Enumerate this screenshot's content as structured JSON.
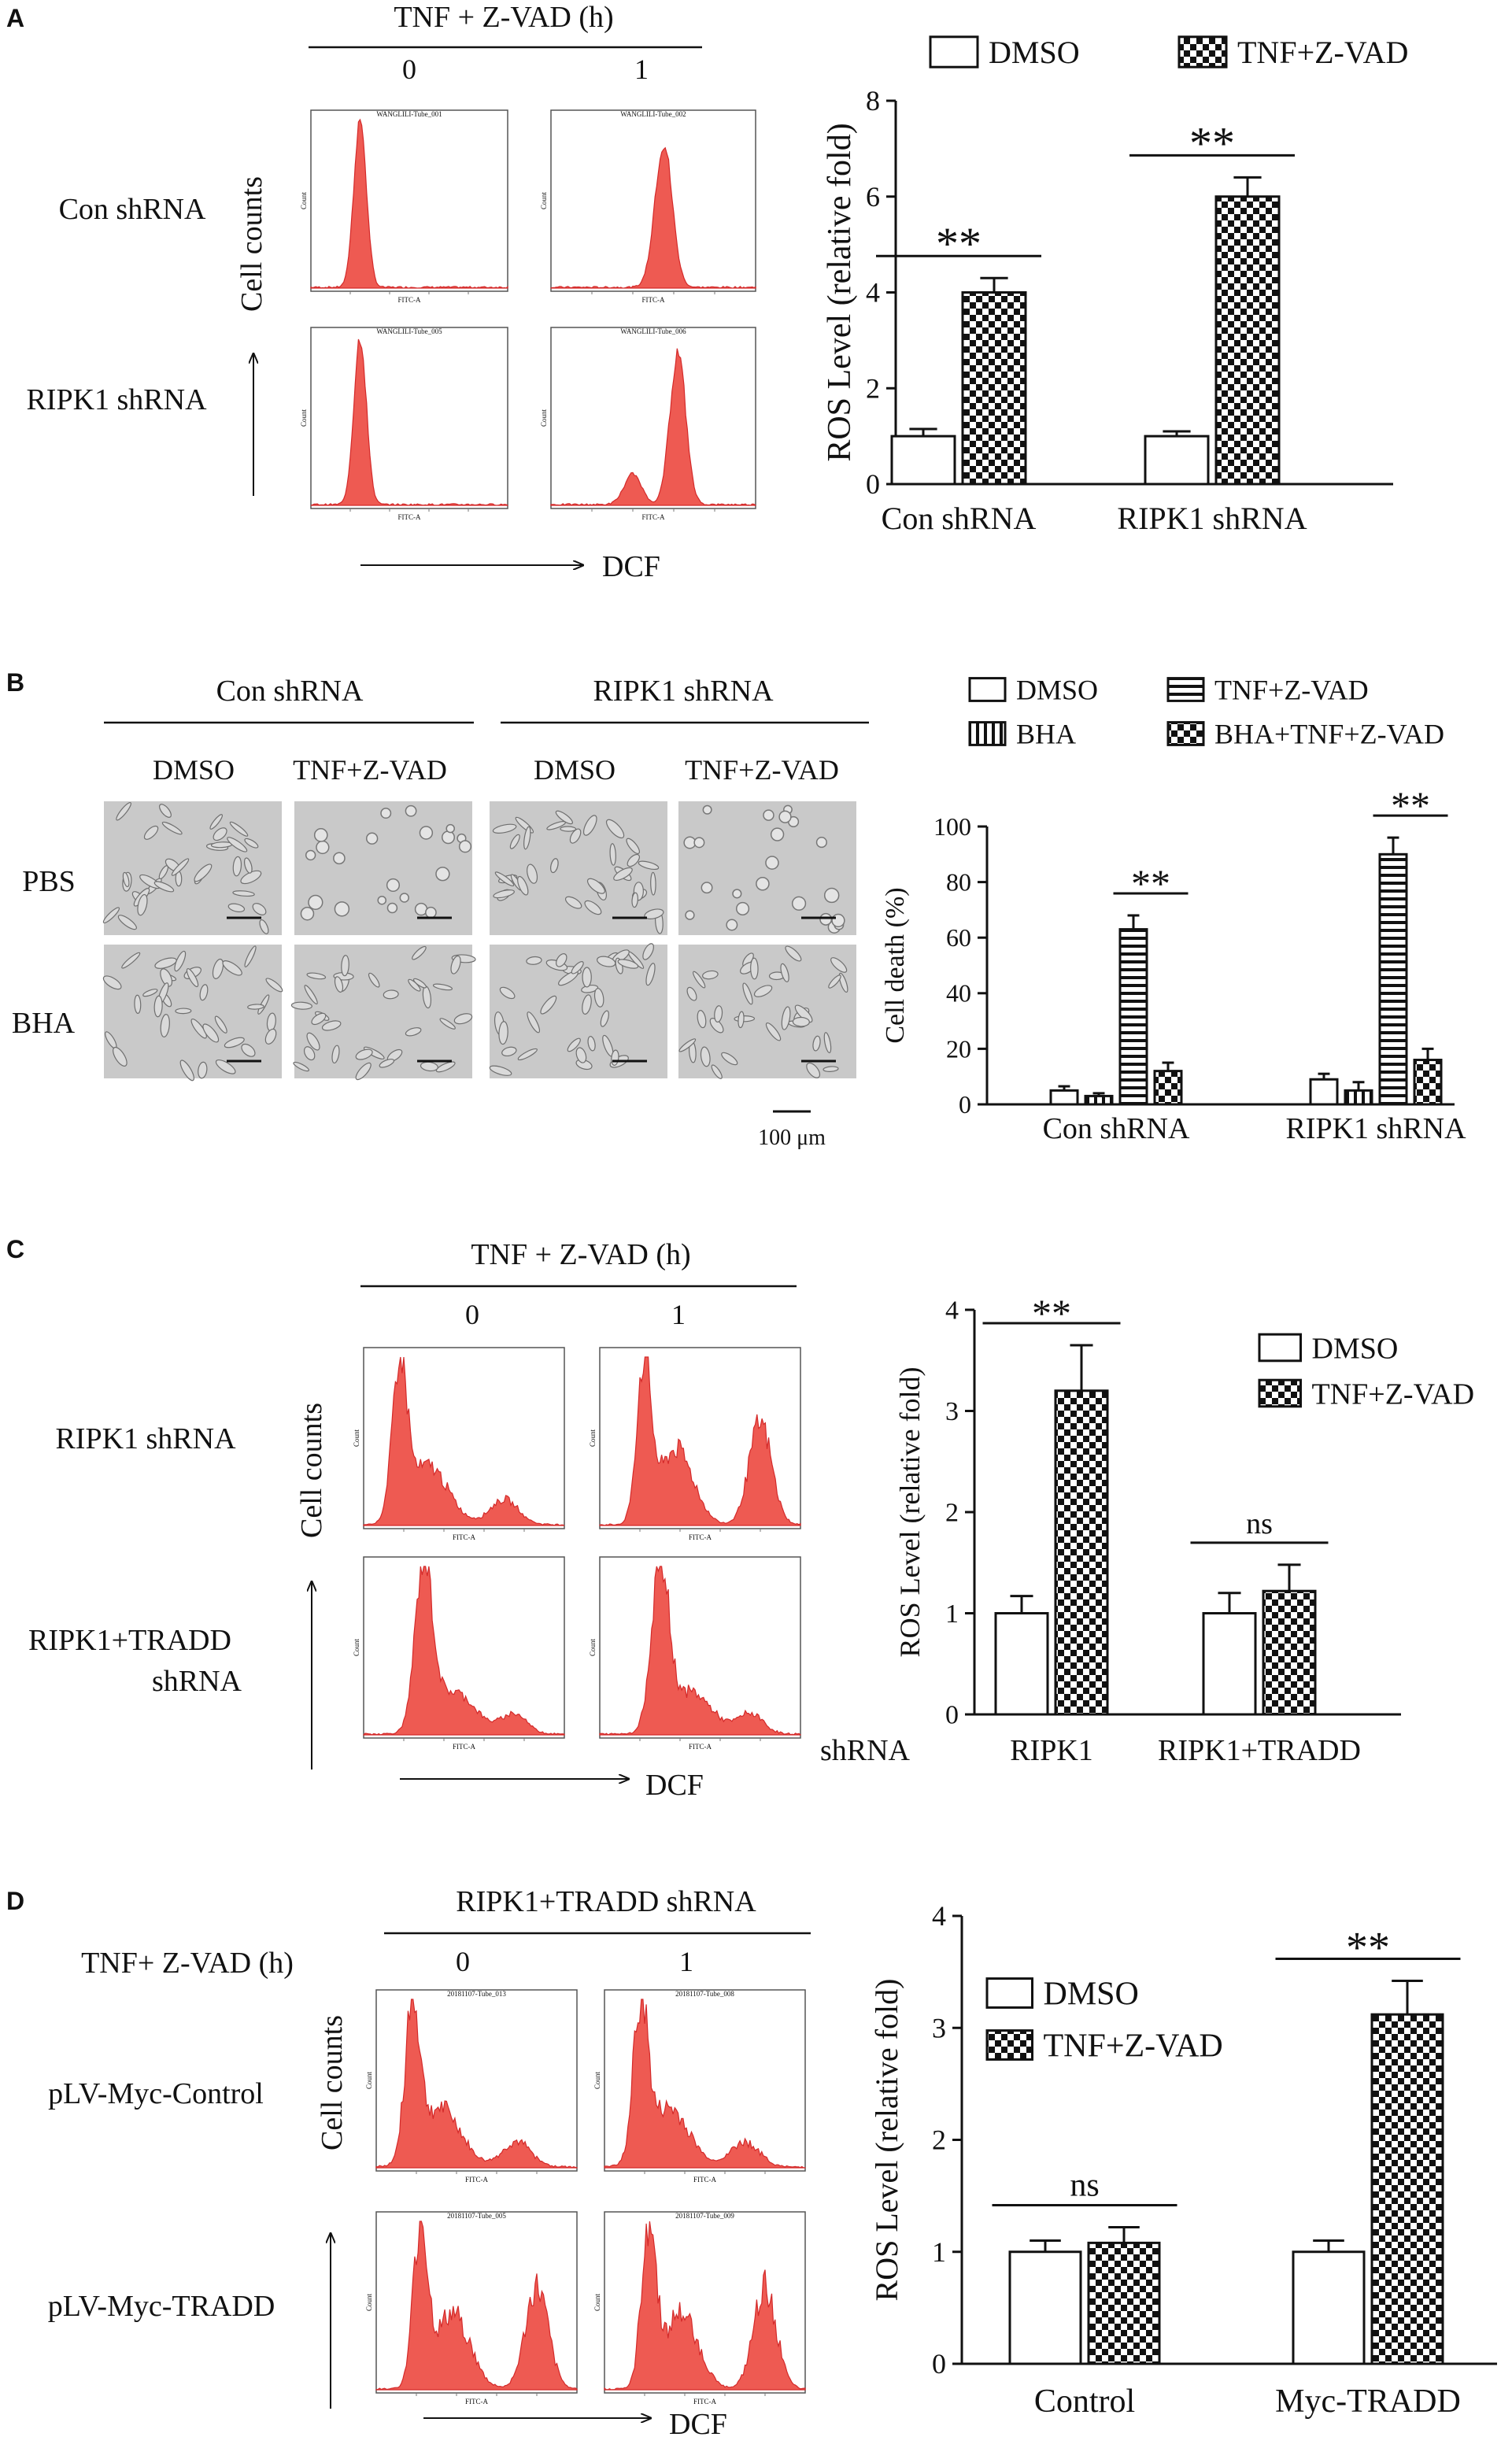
{
  "panels": {
    "A": {
      "label": "A",
      "time_header": "TNF + Z-VAD (h)",
      "times": [
        "0",
        "1"
      ],
      "rows": [
        "Con shRNA",
        "RIPK1 shRNA"
      ],
      "y_axis": "Cell counts",
      "x_axis": "DCF",
      "tube_names": [
        "WANGLILI-Tube_001",
        "WANGLILI-Tube_002",
        "WANGLILI-Tube_005",
        "WANGLILI-Tube_006"
      ],
      "hist_xlabel": "FITC-A",
      "hist_ylabel": "Count"
    },
    "B": {
      "label": "B",
      "groups": [
        "Con shRNA",
        "RIPK1 shRNA"
      ],
      "cols": [
        "DMSO",
        "TNF+Z-VAD",
        "DMSO",
        "TNF+Z-VAD"
      ],
      "rows": [
        "PBS",
        "BHA"
      ],
      "scale_label": "100 μm"
    },
    "C": {
      "label": "C",
      "time_header": "TNF + Z-VAD (h)",
      "times": [
        "0",
        "1"
      ],
      "rows": [
        "RIPK1 shRNA",
        "RIPK1+TRADD",
        "shRNA"
      ],
      "y_axis": "Cell counts",
      "x_axis": "DCF",
      "hist_xlabel": "FITC-A",
      "hist_ylabel": "Count"
    },
    "D": {
      "label": "D",
      "header": "RIPK1+TRADD shRNA",
      "time_label": "TNF+ Z-VAD (h)",
      "times": [
        "0",
        "1"
      ],
      "rows": [
        "pLV-Myc-Control",
        "pLV-Myc-TRADD"
      ],
      "y_axis": "Cell counts",
      "x_axis": "DCF",
      "tube_names": [
        "20181107-Tube_013",
        "20181107-Tube_008",
        "20181107-Tube_005",
        "20181107-Tube_009"
      ],
      "hist_xlabel": "FITC-A",
      "hist_ylabel": "Count"
    }
  },
  "colors": {
    "histogram_fill": "#ee5a52",
    "histogram_edge": "#d42a2a",
    "ink": "#111111",
    "micrograph_bg": "#c9c9c9"
  },
  "chart_data": [
    {
      "id": "A",
      "type": "bar",
      "pattern_series": [
        "open",
        "checker"
      ],
      "categories": [
        "Con shRNA",
        "RIPK1 shRNA"
      ],
      "series": [
        {
          "name": "DMSO",
          "values": [
            1.0,
            1.0
          ],
          "errors": [
            0.15,
            0.1
          ]
        },
        {
          "name": "TNF+Z-VAD",
          "values": [
            4.0,
            6.0
          ],
          "errors": [
            0.3,
            0.4
          ]
        }
      ],
      "ylabel": "ROS Level (relative fold)",
      "ylim": [
        0,
        8
      ],
      "yticks": [
        0,
        2,
        4,
        6,
        8
      ],
      "legend": "top",
      "significance": [
        "**",
        "**"
      ],
      "grid": false
    },
    {
      "id": "B",
      "type": "bar",
      "pattern_series": [
        "open",
        "vstripe",
        "hstripe",
        "checker"
      ],
      "categories": [
        "Con shRNA",
        "RIPK1 shRNA"
      ],
      "series": [
        {
          "name": "DMSO",
          "values": [
            5,
            9
          ],
          "errors": [
            1.5,
            2
          ]
        },
        {
          "name": "BHA",
          "values": [
            3,
            5
          ],
          "errors": [
            1,
            3
          ]
        },
        {
          "name": "TNF+Z-VAD",
          "values": [
            63,
            90
          ],
          "errors": [
            5,
            6
          ]
        },
        {
          "name": "BHA+TNF+Z-VAD",
          "values": [
            12,
            16
          ],
          "errors": [
            3,
            4
          ]
        }
      ],
      "ylabel": "Cell death (%)",
      "ylim": [
        0,
        100
      ],
      "yticks": [
        0,
        20,
        40,
        60,
        80,
        100
      ],
      "legend": "top",
      "significance": [
        "**",
        "**"
      ],
      "grid": false
    },
    {
      "id": "C",
      "type": "bar",
      "pattern_series": [
        "open",
        "checker"
      ],
      "category_prefix": "shRNA",
      "categories": [
        "RIPK1",
        "RIPK1+TRADD"
      ],
      "series": [
        {
          "name": "DMSO",
          "values": [
            1.0,
            1.0
          ],
          "errors": [
            0.17,
            0.2
          ]
        },
        {
          "name": "TNF+Z-VAD",
          "values": [
            3.2,
            1.22
          ],
          "errors": [
            0.45,
            0.26
          ]
        }
      ],
      "ylabel": "ROS Level (relative fold)",
      "ylim": [
        0,
        4
      ],
      "yticks": [
        0,
        1,
        2,
        3,
        4
      ],
      "legend": "right",
      "significance": [
        "**",
        "ns"
      ],
      "grid": false
    },
    {
      "id": "D",
      "type": "bar",
      "pattern_series": [
        "open",
        "checker"
      ],
      "categories": [
        "Control",
        "Myc-TRADD"
      ],
      "series": [
        {
          "name": "DMSO",
          "values": [
            1.0,
            1.0
          ],
          "errors": [
            0.1,
            0.1
          ]
        },
        {
          "name": "TNF+Z-VAD",
          "values": [
            1.08,
            3.12
          ],
          "errors": [
            0.14,
            0.3
          ]
        }
      ],
      "ylabel": "ROS Level (relative fold)",
      "ylim": [
        0,
        4
      ],
      "yticks": [
        0,
        1,
        2,
        3,
        4
      ],
      "legend": "top",
      "significance": [
        "ns",
        "**"
      ],
      "grid": false
    }
  ]
}
